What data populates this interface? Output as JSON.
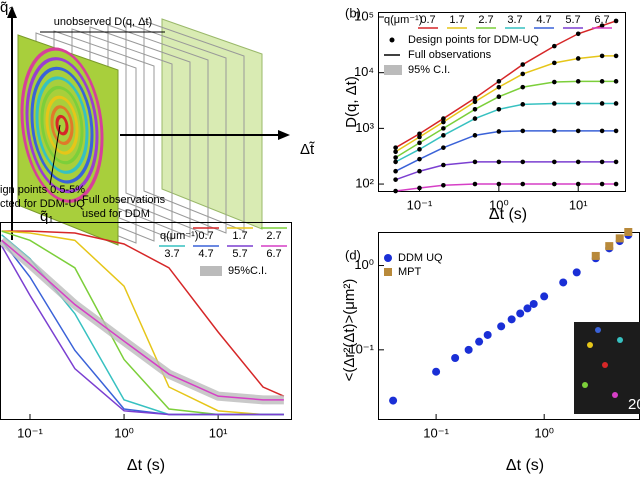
{
  "diagram": {
    "top_label": "unobserved D(q, Δt)",
    "axis_dt": "Δt̃",
    "axis_q2": "q̃₂",
    "axis_q1": "q̃₁",
    "design_line1": "ign points 0.5-5%",
    "design_line2": "cted for DDM-UQ",
    "full_line1": "Full observations",
    "full_line2": "used for DDM"
  },
  "chart_data": [
    {
      "type": "line",
      "panel_label": "(b)",
      "x_label": "Δt (s)",
      "y_label": "D(q, Δt)",
      "legend_title": "q(μm⁻¹)",
      "design_points_label": "Design points for DDM-UQ",
      "full_observations_label": "Full observations",
      "ci_label": "95% C.I.",
      "xscale": "log",
      "yscale": "log",
      "xlim": [
        0.03,
        40
      ],
      "ylim": [
        72,
        123000
      ],
      "xticks": [
        {
          "value": 0.1,
          "label": "10⁻¹"
        },
        {
          "value": 1,
          "label": "10⁰"
        },
        {
          "value": 10,
          "label": "10¹"
        }
      ],
      "yticks": [
        {
          "value": 100,
          "label": "10²"
        },
        {
          "value": 1000,
          "label": "10³"
        },
        {
          "value": 10000,
          "label": "10⁴"
        },
        {
          "value": 100000,
          "label": "10⁵"
        }
      ],
      "markers": true,
      "x": [
        0.05,
        0.1,
        0.2,
        0.5,
        1,
        2,
        5,
        10,
        20,
        30
      ],
      "series": [
        {
          "name": "0.7",
          "color": "#d62728",
          "values": [
            450,
            800,
            1500,
            3500,
            7000,
            14000,
            30000,
            50000,
            70000,
            85000
          ]
        },
        {
          "name": "1.7",
          "color": "#e6c619",
          "values": [
            380,
            700,
            1300,
            3000,
            5500,
            9500,
            15000,
            18000,
            20000,
            20000
          ]
        },
        {
          "name": "2.7",
          "color": "#7ccf3a",
          "values": [
            300,
            550,
            1000,
            2200,
            3700,
            5500,
            6800,
            7000,
            7000,
            7000
          ]
        },
        {
          "name": "3.7",
          "color": "#37c1c1",
          "values": [
            250,
            420,
            750,
            1500,
            2200,
            2700,
            2800,
            2800,
            2800,
            2800
          ]
        },
        {
          "name": "4.7",
          "color": "#3a62d8",
          "values": [
            170,
            280,
            450,
            750,
            880,
            900,
            900,
            900,
            900,
            900
          ]
        },
        {
          "name": "5.7",
          "color": "#7b3fd1",
          "values": [
            120,
            170,
            220,
            250,
            250,
            250,
            250,
            250,
            250,
            250
          ]
        },
        {
          "name": "6.7",
          "color": "#d63fc6",
          "values": [
            75,
            85,
            95,
            100,
            100,
            100,
            100,
            100,
            100,
            100
          ]
        }
      ]
    },
    {
      "type": "line",
      "x_label": "Δt (s)",
      "legend_title": "q(μm⁻¹)",
      "ci_label": "95%C.I.",
      "xscale": "log",
      "yscale": "linear",
      "xlim": [
        0.048,
        61
      ],
      "ylim": [
        -0.03,
        1.05
      ],
      "xticks": [
        {
          "value": 0.1,
          "label": "10⁻¹"
        },
        {
          "value": 1,
          "label": "10⁰"
        },
        {
          "value": 10,
          "label": "10¹"
        }
      ],
      "markers": false,
      "x": [
        0.05,
        0.1,
        0.3,
        1,
        3,
        10,
        30,
        50
      ],
      "series": [
        {
          "name": "0.7",
          "color": "#d62728",
          "values": [
            1,
            1,
            0.99,
            0.93,
            0.8,
            0.45,
            0.15,
            0.1
          ]
        },
        {
          "name": "1.7",
          "color": "#e6c619",
          "values": [
            1,
            0.99,
            0.95,
            0.7,
            0.15,
            0.02,
            0,
            0
          ]
        },
        {
          "name": "2.7",
          "color": "#7ccf3a",
          "values": [
            1,
            0.95,
            0.8,
            0.3,
            0.03,
            0,
            0,
            0
          ]
        },
        {
          "name": "3.7",
          "color": "#37c1c1",
          "values": [
            0.98,
            0.85,
            0.55,
            0.08,
            0,
            0,
            0,
            0
          ]
        },
        {
          "name": "4.7",
          "color": "#3a62d8",
          "values": [
            0.95,
            0.75,
            0.35,
            0.03,
            0,
            0,
            0,
            0
          ]
        },
        {
          "name": "5.7",
          "color": "#7b3fd1",
          "values": [
            0.92,
            0.65,
            0.25,
            0.02,
            0,
            0,
            0,
            0
          ]
        },
        {
          "name": "6.7",
          "color": "#d63fc6",
          "values": [
            0.95,
            0.82,
            0.6,
            0.4,
            0.22,
            0.1,
            0.08,
            0.08
          ]
        }
      ]
    },
    {
      "type": "scatter",
      "panel_label": "(d)",
      "x_label": "Δt (s)",
      "y_label": "<(Δr²(Δt)>(μm²)",
      "inset_text": "20",
      "xscale": "log",
      "yscale": "log",
      "xlim": [
        0.029,
        7.7
      ],
      "ylim": [
        0.0147,
        2.5
      ],
      "xticks": [
        {
          "value": 0.1,
          "label": "10⁻¹"
        },
        {
          "value": 1,
          "label": "10⁰"
        }
      ],
      "yticks": [
        {
          "value": 0.1,
          "label": "10⁻¹"
        },
        {
          "value": 1,
          "label": "10⁰"
        }
      ],
      "series": [
        {
          "name": "DDM UQ",
          "color": "#1a2fd6",
          "marker": "circle",
          "x": [
            0.04,
            0.1,
            0.15,
            0.2,
            0.25,
            0.3,
            0.4,
            0.5,
            0.6,
            0.7,
            0.8,
            1,
            1.5,
            2,
            3,
            4,
            5,
            6
          ],
          "values": [
            0.025,
            0.055,
            0.08,
            0.1,
            0.125,
            0.15,
            0.19,
            0.23,
            0.27,
            0.31,
            0.35,
            0.43,
            0.63,
            0.83,
            1.22,
            1.6,
            1.95,
            2.3
          ]
        },
        {
          "name": "MPT",
          "color": "#b8893a",
          "marker": "square",
          "x": [
            3,
            4,
            5,
            6
          ],
          "values": [
            1.3,
            1.7,
            2.1,
            2.5
          ]
        }
      ]
    }
  ]
}
